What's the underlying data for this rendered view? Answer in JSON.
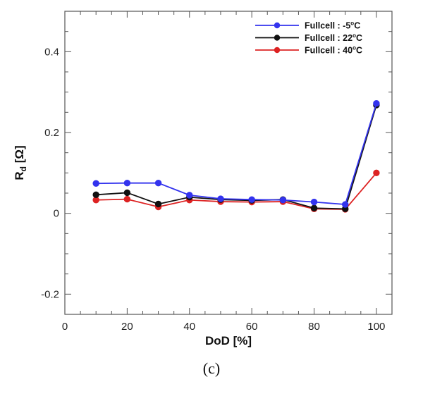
{
  "chart_data": {
    "type": "line",
    "xlabel": "DoD [%]",
    "ylabel": "Rd [Ω]",
    "ylabel_main": "R",
    "ylabel_sub": "d",
    "ylabel_unit": " [Ω]",
    "xlim": [
      0,
      105
    ],
    "ylim": [
      -0.25,
      0.5
    ],
    "xticks": [
      0,
      20,
      40,
      60,
      80,
      100
    ],
    "xtick_labels": [
      "0",
      "20",
      "40",
      "60",
      "80",
      "100"
    ],
    "yticks": [
      -0.2,
      0,
      0.2,
      0.4
    ],
    "ytick_labels": [
      "-0.2",
      "0",
      "0.2",
      "0.4"
    ],
    "grid": false,
    "legend_position": "top-right",
    "x": [
      10,
      20,
      30,
      40,
      50,
      60,
      70,
      80,
      90,
      100
    ],
    "series": [
      {
        "name": "Fullcell : -5°C",
        "label_prefix": "Fullcell : -5",
        "label_suffix": "C",
        "color": "#3333ee",
        "values": [
          0.074,
          0.075,
          0.075,
          0.045,
          0.036,
          0.034,
          0.033,
          0.028,
          0.022,
          0.272
        ]
      },
      {
        "name": "Fullcell : 22°C",
        "label_prefix": "Fullcell : 22",
        "label_suffix": "C",
        "color": "#111111",
        "values": [
          0.046,
          0.051,
          0.023,
          0.04,
          0.034,
          0.032,
          0.034,
          0.013,
          0.011,
          0.268
        ]
      },
      {
        "name": "Fullcell : 40°C",
        "label_prefix": "Fullcell : 40",
        "label_suffix": "C",
        "color": "#dd2222",
        "values": [
          0.033,
          0.035,
          0.016,
          0.033,
          0.029,
          0.028,
          0.029,
          0.011,
          0.01,
          0.1
        ]
      }
    ],
    "caption": "(c)"
  }
}
